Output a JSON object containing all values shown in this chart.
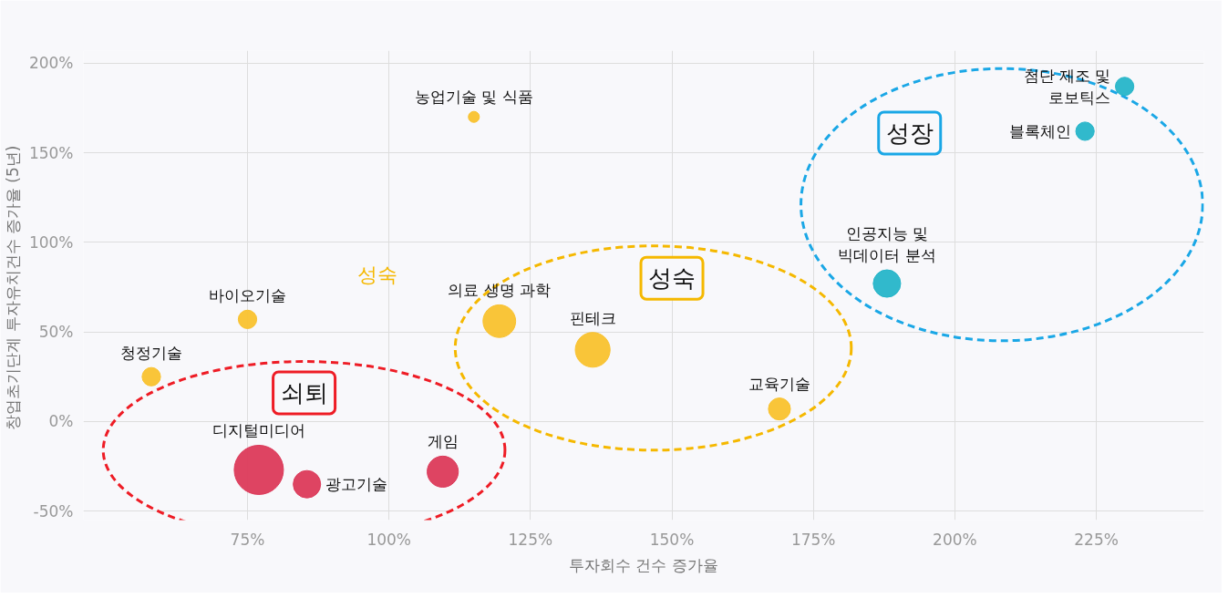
{
  "chart_data": {
    "type": "bubble",
    "xlabel": "투자회수 건수 증가율",
    "ylabel": "창업초기단계 투자유치건수  증가율 (5년)",
    "xlim": [
      46,
      244
    ],
    "ylim": [
      -55,
      207
    ],
    "xticks": [
      {
        "value": 75,
        "label": "75%"
      },
      {
        "value": 100,
        "label": "100%"
      },
      {
        "value": 125,
        "label": "125%"
      },
      {
        "value": 150,
        "label": "150%"
      },
      {
        "value": 175,
        "label": "175%"
      },
      {
        "value": 200,
        "label": "200%"
      },
      {
        "value": 225,
        "label": "225%"
      }
    ],
    "yticks": [
      {
        "value": -50,
        "label": "-50%"
      },
      {
        "value": 0,
        "label": "0%"
      },
      {
        "value": 50,
        "label": "50%"
      },
      {
        "value": 100,
        "label": "100%"
      },
      {
        "value": 150,
        "label": "150%"
      },
      {
        "value": 200,
        "label": "200%"
      }
    ],
    "grid": true,
    "marker": "circle",
    "series": [
      {
        "name": "농업기술 및 식품",
        "color": "#f9c22e",
        "x": [
          115
        ],
        "values": [
          170
        ],
        "sizes": [
          0.05
        ]
      },
      {
        "name": "첨단 제조 및\n로보틱스",
        "color": "#26b5c9",
        "x": [
          230
        ],
        "values": [
          187
        ],
        "sizes": [
          0.14
        ]
      },
      {
        "name": "블록체인",
        "color": "#26b5c9",
        "x": [
          223
        ],
        "values": [
          162
        ],
        "sizes": [
          0.14
        ]
      },
      {
        "name": "인공지능 및\n빅데이터 분석",
        "color": "#26b5c9",
        "x": [
          188
        ],
        "values": [
          77
        ],
        "sizes": [
          0.31
        ]
      },
      {
        "name": "바이오기술",
        "color": "#f9c22e",
        "x": [
          75
        ],
        "values": [
          57
        ],
        "sizes": [
          0.14
        ]
      },
      {
        "name": "청정기술",
        "color": "#f9c22e",
        "x": [
          58
        ],
        "values": [
          25
        ],
        "sizes": [
          0.14
        ]
      },
      {
        "name": "의료 생명 과학",
        "color": "#f9c22e",
        "x": [
          119.5
        ],
        "values": [
          56
        ],
        "sizes": [
          0.44
        ]
      },
      {
        "name": "핀테크",
        "color": "#f9c22e",
        "x": [
          136
        ],
        "values": [
          40
        ],
        "sizes": [
          0.5
        ]
      },
      {
        "name": "교육기술",
        "color": "#f9c22e",
        "x": [
          169
        ],
        "values": [
          7
        ],
        "sizes": [
          0.2
        ]
      },
      {
        "name": "디지털미디어",
        "color": "#dc3a5a",
        "x": [
          77
        ],
        "values": [
          -27
        ],
        "sizes": [
          1
        ]
      },
      {
        "name": "광고기술",
        "color": "#dc3a5a",
        "x": [
          85.5
        ],
        "values": [
          -35
        ],
        "sizes": [
          0.31
        ]
      },
      {
        "name": "게임",
        "color": "#dc3a5a",
        "x": [
          109.5
        ],
        "values": [
          -28
        ],
        "sizes": [
          0.4
        ]
      }
    ],
    "annotations": [
      "성숙",
      "성숙",
      "쇠퇴",
      "성장"
    ]
  }
}
